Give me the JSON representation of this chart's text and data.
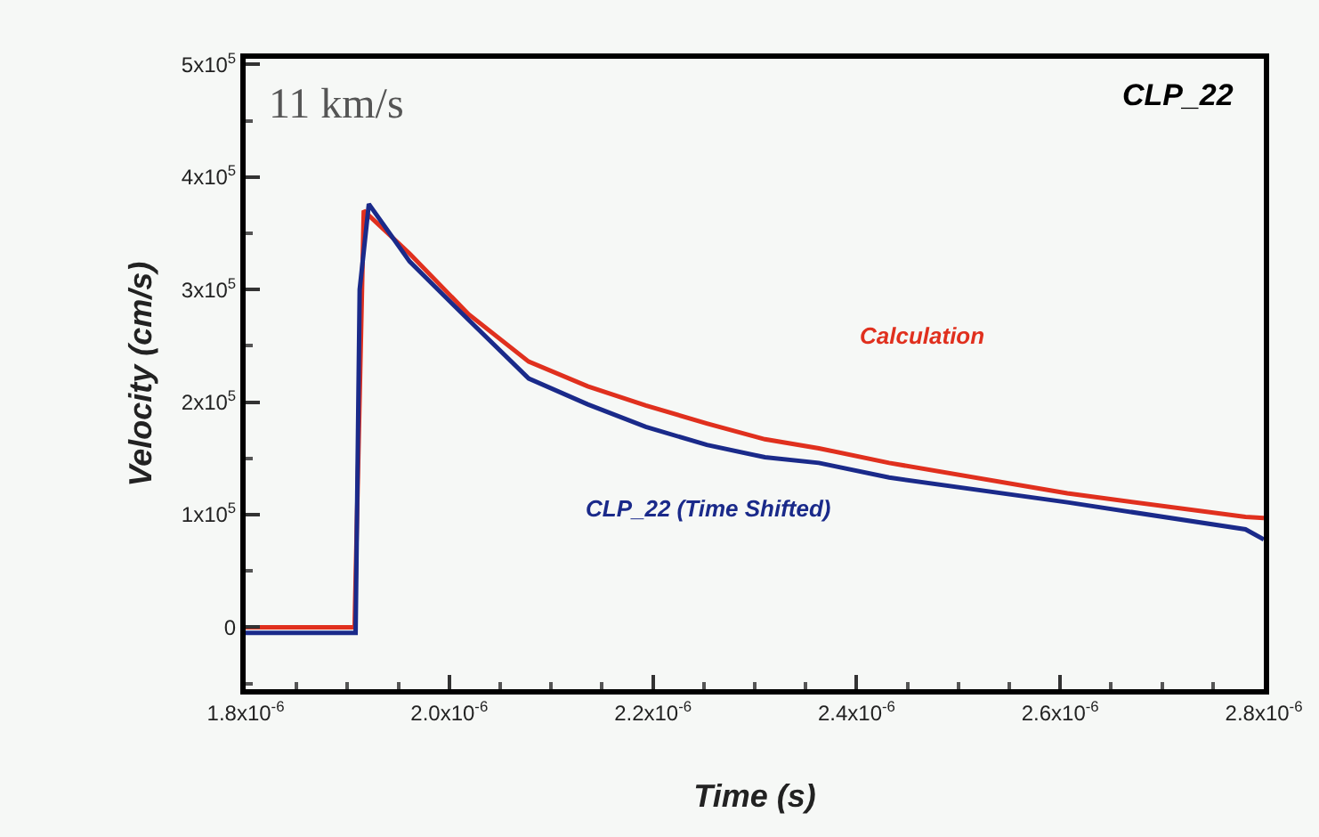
{
  "chart_data": {
    "type": "line",
    "title": "CLP_22",
    "xlabel": "Time (s)",
    "ylabel": "Velocity (cm/s)",
    "annotations": [
      "11 km/s"
    ],
    "xlim": [
      1.8e-06,
      2.8e-06
    ],
    "ylim": [
      -55000,
      505000
    ],
    "xticks": [
      {
        "value": 1.8e-06,
        "label": "1.8x10$^{-6}$"
      },
      {
        "value": 2e-06,
        "label": "2.0x10$^{-6}$"
      },
      {
        "value": 2.2e-06,
        "label": "2.2x10$^{-6}$"
      },
      {
        "value": 2.4e-06,
        "label": "2.4x10$^{-6}$"
      },
      {
        "value": 2.6e-06,
        "label": "2.6x10$^{-6}$"
      },
      {
        "value": 2.8e-06,
        "label": "2.8x10$^{-6}$"
      }
    ],
    "yticks": [
      0,
      {
        "value": 100000,
        "label": "1x10$^{5}$"
      },
      {
        "value": 200000,
        "label": "2x10$^{5}$"
      },
      {
        "value": 300000,
        "label": "3x10$^{5}$"
      },
      {
        "value": 400000,
        "label": "4x10$^{5}$"
      },
      {
        "value": 500000,
        "label": "5x10$^{5}$"
      }
    ],
    "series": [
      {
        "name": "Calculation",
        "color": "#e0301e",
        "x": [
          1.8e-06,
          1.907e-06,
          1.916e-06,
          1.961e-06,
          2.019e-06,
          2.078e-06,
          2.136e-06,
          2.193e-06,
          2.253e-06,
          2.31e-06,
          2.363e-06,
          2.432e-06,
          2.607e-06,
          2.782e-06,
          2.8e-06
        ],
        "values": [
          0,
          0,
          370000,
          332000,
          278000,
          236000,
          214000,
          197000,
          181000,
          167000,
          159000,
          146000,
          119000,
          98000,
          97000
        ]
      },
      {
        "name": "CLP_22 (Time Shifted)",
        "color": "#1a2a8a",
        "x": [
          1.8e-06,
          1.908e-06,
          1.912e-06,
          1.921e-06,
          1.961e-06,
          2.019e-06,
          2.078e-06,
          2.136e-06,
          2.193e-06,
          2.253e-06,
          2.31e-06,
          2.363e-06,
          2.432e-06,
          2.607e-06,
          2.782e-06,
          2.8e-06
        ],
        "values": [
          -5000,
          -5000,
          300000,
          376000,
          325000,
          273000,
          221000,
          198000,
          178000,
          162000,
          151000,
          146000,
          133000,
          111000,
          87000,
          78000
        ]
      }
    ],
    "legend": false,
    "grid": false,
    "marker": "none",
    "line_style": "solid"
  }
}
